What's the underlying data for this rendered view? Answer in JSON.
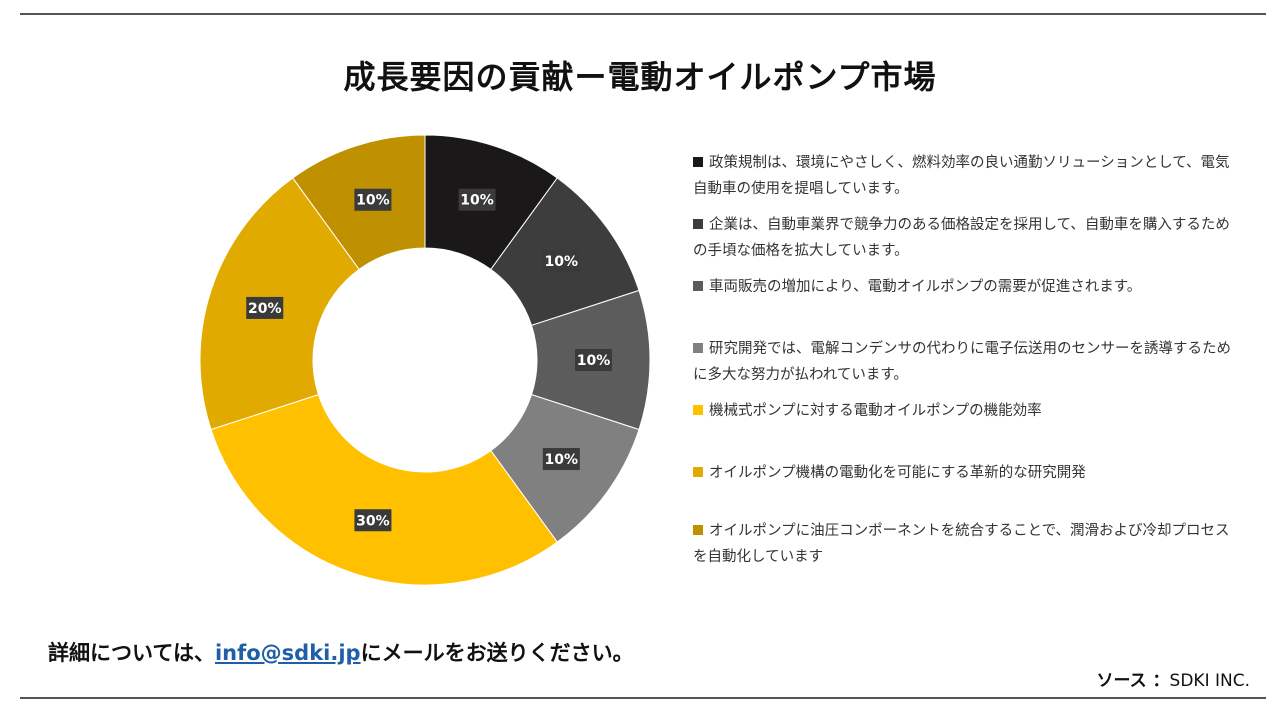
{
  "page": {
    "title": "成長要因の貢献ー電動オイルポンプ市場",
    "footer": {
      "prefix": "詳細については、",
      "email": "info@sdki.jp",
      "suffix": "にメールをお送りください。"
    },
    "source": {
      "label": "ソース ：",
      "value": "SDKI INC."
    }
  },
  "chart_data": {
    "type": "pie",
    "subtype": "donut",
    "title": "成長要因の貢献ー電動オイルポンプ市場",
    "legend_position": "right",
    "categories": [
      "政策規制は、環境にやさしく、燃料効率の良い通勤ソリューションとして、電気自動車の使用を提唱しています。",
      "企業は、自動車業界で競争力のある価格設定を採用して、自動車を購入するための手頃な価格を拡大しています。",
      "車両販売の増加により、電動オイルポンプの需要が促進されます。",
      "研究開発では、電解コンデンサの代わりに電子伝送用のセンサーを誘導するために多大な努力が払われています。",
      "機械式ポンプに対する電動オイルポンプの機能効率",
      "オイルポンプ機構の電動化を可能にする革新的な研究開発",
      "オイルポンプに油圧コンポーネントを統合することで、潤滑および冷却プロセスを自動化しています"
    ],
    "values": [
      10,
      10,
      10,
      10,
      30,
      20,
      10
    ],
    "data_labels": [
      "10%",
      "10%",
      "10%",
      "10%",
      "30%",
      "20%",
      "10%"
    ],
    "colors": [
      "#1a1818",
      "#3d3d3d",
      "#5c5c5c",
      "#808080",
      "#ffc000",
      "#e0aa00",
      "#bf9000"
    ]
  }
}
